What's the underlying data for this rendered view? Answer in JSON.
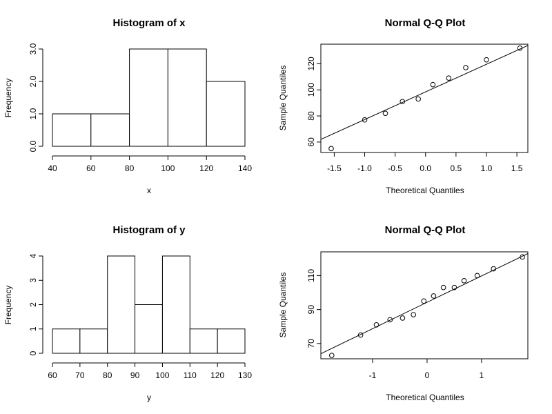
{
  "chart_data": [
    {
      "type": "bar",
      "title": "Histogram of x",
      "xlabel": "x",
      "ylabel": "Frequency",
      "breaks": [
        40,
        60,
        80,
        100,
        120,
        140
      ],
      "counts": [
        1,
        1,
        3,
        3,
        2
      ],
      "xlim": [
        40,
        140
      ],
      "ylim": [
        0,
        3
      ],
      "xticks": [
        "40",
        "60",
        "80",
        "100",
        "120",
        "140"
      ],
      "yticks": [
        "0.0",
        "1.0",
        "2.0",
        "3.0"
      ],
      "grid": false
    },
    {
      "type": "scatter",
      "title": "Normal Q-Q Plot",
      "xlabel": "Theoretical Quantiles",
      "ylabel": "Sample Quantiles",
      "x": [
        -1.55,
        -1.0,
        -0.66,
        -0.38,
        -0.12,
        0.12,
        0.38,
        0.66,
        1.0,
        1.55
      ],
      "y": [
        55,
        77,
        82,
        91,
        93,
        104,
        109,
        117,
        123,
        132
      ],
      "reference_line": {
        "x": [
          -1.72,
          1.68
        ],
        "y": [
          62,
          134
        ]
      },
      "xlim": [
        -1.72,
        1.68
      ],
      "ylim": [
        52,
        135
      ],
      "xticks": [
        "-1.5",
        "-1.0",
        "-0.5",
        "0.0",
        "0.5",
        "1.0",
        "1.5"
      ],
      "yticks": [
        "60",
        "80",
        "100",
        "120"
      ],
      "grid": false
    },
    {
      "type": "bar",
      "title": "Histogram of y",
      "xlabel": "y",
      "ylabel": "Frequency",
      "breaks": [
        60,
        70,
        80,
        90,
        100,
        110,
        120,
        130
      ],
      "counts": [
        1,
        1,
        4,
        2,
        4,
        1,
        1
      ],
      "xlim": [
        60,
        130
      ],
      "ylim": [
        0,
        4
      ],
      "xticks": [
        "60",
        "70",
        "80",
        "90",
        "100",
        "110",
        "120",
        "130"
      ],
      "yticks": [
        "0",
        "1",
        "2",
        "3",
        "4"
      ],
      "grid": false
    },
    {
      "type": "scatter",
      "title": "Normal Q-Q Plot",
      "xlabel": "Theoretical Quantiles",
      "ylabel": "Sample Quantiles",
      "x": [
        -1.75,
        -1.22,
        -0.93,
        -0.68,
        -0.45,
        -0.25,
        -0.06,
        0.12,
        0.3,
        0.5,
        0.68,
        0.92,
        1.22,
        1.75
      ],
      "y": [
        63,
        75,
        81,
        84,
        85,
        87,
        95,
        98,
        103,
        103,
        107,
        110,
        114,
        121
      ],
      "reference_line": {
        "x": [
          -1.95,
          1.85
        ],
        "y": [
          64,
          123
        ]
      },
      "xlim": [
        -1.95,
        1.85
      ],
      "ylim": [
        61,
        124
      ],
      "xticks": [
        "-1",
        "0",
        "1"
      ],
      "yticks": [
        "70",
        "90",
        "110"
      ],
      "grid": false
    }
  ]
}
